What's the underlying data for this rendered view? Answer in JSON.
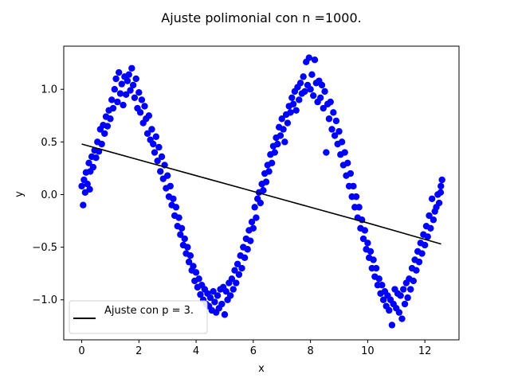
{
  "chart_data": {
    "type": "scatter",
    "title": "Ajuste polimonial con n =1000.",
    "xlabel": "x",
    "ylabel": "y",
    "xlim": [
      -0.628,
      13.194
    ],
    "ylim": [
      -1.38,
      1.41
    ],
    "xticks": [
      0,
      2,
      4,
      6,
      8,
      10,
      12
    ],
    "yticks": [
      -1.0,
      -0.5,
      0.0,
      0.5,
      1.0
    ],
    "xtick_labels": [
      "0",
      "2",
      "4",
      "6",
      "8",
      "10",
      "12"
    ],
    "ytick_labels": [
      "−1.0",
      "−0.5",
      "0.0",
      "0.5",
      "1.0"
    ],
    "grid": false,
    "legend_placement": "lower-left",
    "series": [
      {
        "type": "scatter",
        "color": "#0000ff",
        "points": [
          [
            0.0,
            0.08
          ],
          [
            0.05,
            -0.1
          ],
          [
            0.08,
            0.14
          ],
          [
            0.12,
            0.02
          ],
          [
            0.15,
            0.21
          ],
          [
            0.2,
            0.1
          ],
          [
            0.25,
            0.3
          ],
          [
            0.28,
            0.05
          ],
          [
            0.3,
            0.22
          ],
          [
            0.35,
            0.36
          ],
          [
            0.4,
            0.26
          ],
          [
            0.45,
            0.42
          ],
          [
            0.5,
            0.35
          ],
          [
            0.55,
            0.5
          ],
          [
            0.6,
            0.41
          ],
          [
            0.65,
            0.62
          ],
          [
            0.7,
            0.48
          ],
          [
            0.75,
            0.66
          ],
          [
            0.8,
            0.58
          ],
          [
            0.85,
            0.74
          ],
          [
            0.9,
            0.65
          ],
          [
            0.95,
            0.8
          ],
          [
            1.0,
            0.72
          ],
          [
            1.05,
            0.9
          ],
          [
            1.1,
            0.82
          ],
          [
            1.15,
            1.0
          ],
          [
            1.2,
            1.1
          ],
          [
            1.25,
            0.88
          ],
          [
            1.3,
            1.16
          ],
          [
            1.35,
            0.96
          ],
          [
            1.4,
            1.05
          ],
          [
            1.45,
            0.85
          ],
          [
            1.5,
            1.12
          ],
          [
            1.55,
            0.95
          ],
          [
            1.6,
            1.08
          ],
          [
            1.65,
            1.14
          ],
          [
            1.7,
            0.99
          ],
          [
            1.75,
            1.2
          ],
          [
            1.8,
            1.04
          ],
          [
            1.85,
            0.92
          ],
          [
            1.9,
            1.1
          ],
          [
            1.95,
            0.82
          ],
          [
            2.0,
            0.97
          ],
          [
            2.05,
            0.78
          ],
          [
            2.1,
            0.9
          ],
          [
            2.15,
            0.68
          ],
          [
            2.2,
            0.84
          ],
          [
            2.25,
            0.72
          ],
          [
            2.3,
            0.58
          ],
          [
            2.35,
            0.75
          ],
          [
            2.4,
            0.52
          ],
          [
            2.45,
            0.62
          ],
          [
            2.5,
            0.48
          ],
          [
            2.55,
            0.4
          ],
          [
            2.6,
            0.55
          ],
          [
            2.65,
            0.32
          ],
          [
            2.7,
            0.45
          ],
          [
            2.75,
            0.22
          ],
          [
            2.8,
            0.36
          ],
          [
            2.85,
            0.15
          ],
          [
            2.9,
            0.28
          ],
          [
            2.95,
            0.06
          ],
          [
            3.0,
            0.18
          ],
          [
            3.05,
            -0.02
          ],
          [
            3.1,
            0.08
          ],
          [
            3.15,
            -0.1
          ],
          [
            3.2,
            -0.04
          ],
          [
            3.25,
            -0.2
          ],
          [
            3.3,
            -0.12
          ],
          [
            3.35,
            -0.3
          ],
          [
            3.4,
            -0.22
          ],
          [
            3.45,
            -0.38
          ],
          [
            3.5,
            -0.32
          ],
          [
            3.55,
            -0.48
          ],
          [
            3.6,
            -0.42
          ],
          [
            3.65,
            -0.56
          ],
          [
            3.7,
            -0.5
          ],
          [
            3.75,
            -0.64
          ],
          [
            3.8,
            -0.58
          ],
          [
            3.85,
            -0.72
          ],
          [
            3.9,
            -0.68
          ],
          [
            3.95,
            -0.82
          ],
          [
            4.0,
            -0.74
          ],
          [
            4.05,
            -0.88
          ],
          [
            4.1,
            -0.8
          ],
          [
            4.15,
            -0.95
          ],
          [
            4.2,
            -0.86
          ],
          [
            4.25,
            -1.0
          ],
          [
            4.3,
            -0.9
          ],
          [
            4.35,
            -1.04
          ],
          [
            4.4,
            -0.94
          ],
          [
            4.45,
            -1.06
          ],
          [
            4.5,
            -0.98
          ],
          [
            4.55,
            -1.1
          ],
          [
            4.6,
            -0.92
          ],
          [
            4.65,
            -1.02
          ],
          [
            4.7,
            -1.12
          ],
          [
            4.75,
            -0.96
          ],
          [
            4.8,
            -1.08
          ],
          [
            4.85,
            -0.9
          ],
          [
            4.9,
            -1.04
          ],
          [
            4.95,
            -0.88
          ],
          [
            5.0,
            -1.14
          ],
          [
            5.05,
            -0.92
          ],
          [
            5.1,
            -1.0
          ],
          [
            5.15,
            -0.84
          ],
          [
            5.2,
            -0.96
          ],
          [
            5.25,
            -0.8
          ],
          [
            5.3,
            -0.9
          ],
          [
            5.35,
            -0.72
          ],
          [
            5.4,
            -0.84
          ],
          [
            5.45,
            -0.66
          ],
          [
            5.5,
            -0.76
          ],
          [
            5.55,
            -0.58
          ],
          [
            5.6,
            -0.7
          ],
          [
            5.65,
            -0.5
          ],
          [
            5.7,
            -0.6
          ],
          [
            5.75,
            -0.42
          ],
          [
            5.8,
            -0.52
          ],
          [
            5.85,
            -0.34
          ],
          [
            5.9,
            -0.44
          ],
          [
            5.95,
            -0.26
          ],
          [
            6.0,
            -0.32
          ],
          [
            6.05,
            -0.12
          ],
          [
            6.1,
            -0.22
          ],
          [
            6.15,
            -0.04
          ],
          [
            6.2,
            0.02
          ],
          [
            6.25,
            -0.08
          ],
          [
            6.3,
            0.1
          ],
          [
            6.35,
            0.04
          ],
          [
            6.4,
            0.2
          ],
          [
            6.45,
            0.12
          ],
          [
            6.5,
            0.28
          ],
          [
            6.55,
            0.22
          ],
          [
            6.6,
            0.38
          ],
          [
            6.65,
            0.3
          ],
          [
            6.7,
            0.46
          ],
          [
            6.75,
            0.4
          ],
          [
            6.8,
            0.54
          ],
          [
            6.85,
            0.48
          ],
          [
            6.9,
            0.64
          ],
          [
            6.95,
            0.56
          ],
          [
            7.0,
            0.72
          ],
          [
            7.05,
            0.62
          ],
          [
            7.1,
            0.5
          ],
          [
            7.15,
            0.76
          ],
          [
            7.2,
            0.68
          ],
          [
            7.25,
            0.84
          ],
          [
            7.3,
            0.78
          ],
          [
            7.35,
            0.92
          ],
          [
            7.4,
            0.86
          ],
          [
            7.45,
            0.98
          ],
          [
            7.5,
            0.8
          ],
          [
            7.55,
            1.02
          ],
          [
            7.6,
            0.9
          ],
          [
            7.65,
            1.06
          ],
          [
            7.7,
            0.96
          ],
          [
            7.75,
            1.12
          ],
          [
            7.8,
            0.98
          ],
          [
            7.85,
            1.26
          ],
          [
            7.9,
            1.04
          ],
          [
            7.95,
            1.3
          ],
          [
            8.0,
            1.0
          ],
          [
            8.05,
            1.14
          ],
          [
            8.1,
            0.94
          ],
          [
            8.15,
            1.28
          ],
          [
            8.2,
            1.06
          ],
          [
            8.25,
            0.88
          ],
          [
            8.3,
            1.08
          ],
          [
            8.35,
            0.92
          ],
          [
            8.4,
            1.04
          ],
          [
            8.45,
            0.82
          ],
          [
            8.5,
            0.98
          ],
          [
            8.55,
            0.4
          ],
          [
            8.6,
            0.86
          ],
          [
            8.65,
            0.72
          ],
          [
            8.7,
            0.88
          ],
          [
            8.75,
            0.62
          ],
          [
            8.8,
            0.78
          ],
          [
            8.85,
            0.56
          ],
          [
            8.9,
            0.7
          ],
          [
            8.95,
            0.48
          ],
          [
            9.0,
            0.6
          ],
          [
            9.05,
            0.38
          ],
          [
            9.1,
            0.5
          ],
          [
            9.15,
            0.28
          ],
          [
            9.2,
            0.4
          ],
          [
            9.25,
            0.18
          ],
          [
            9.3,
            0.3
          ],
          [
            9.35,
            0.08
          ],
          [
            9.4,
            0.2
          ],
          [
            9.45,
            -0.02
          ],
          [
            9.5,
            0.08
          ],
          [
            9.55,
            -0.12
          ],
          [
            9.6,
            -0.02
          ],
          [
            9.65,
            -0.22
          ],
          [
            9.7,
            -0.12
          ],
          [
            9.75,
            -0.32
          ],
          [
            9.8,
            -0.24
          ],
          [
            9.85,
            -0.42
          ],
          [
            9.9,
            -0.34
          ],
          [
            9.95,
            -0.52
          ],
          [
            10.0,
            -0.46
          ],
          [
            10.05,
            -0.6
          ],
          [
            10.1,
            -0.54
          ],
          [
            10.15,
            -0.7
          ],
          [
            10.2,
            -0.62
          ],
          [
            10.25,
            -0.78
          ],
          [
            10.3,
            -0.7
          ],
          [
            10.35,
            -0.86
          ],
          [
            10.4,
            -0.8
          ],
          [
            10.45,
            -0.94
          ],
          [
            10.5,
            -0.86
          ],
          [
            10.55,
            -1.0
          ],
          [
            10.6,
            -0.92
          ],
          [
            10.65,
            -1.06
          ],
          [
            10.7,
            -0.96
          ],
          [
            10.75,
            -1.1
          ],
          [
            10.8,
            -1.0
          ],
          [
            10.85,
            -1.24
          ],
          [
            10.9,
            -1.04
          ],
          [
            10.95,
            -0.9
          ],
          [
            11.0,
            -1.08
          ],
          [
            11.05,
            -0.94
          ],
          [
            11.1,
            -1.12
          ],
          [
            11.15,
            -0.96
          ],
          [
            11.2,
            -1.18
          ],
          [
            11.25,
            -0.9
          ],
          [
            11.3,
            -1.04
          ],
          [
            11.35,
            -0.84
          ],
          [
            11.4,
            -0.98
          ],
          [
            11.45,
            -0.8
          ],
          [
            11.5,
            -0.9
          ],
          [
            11.55,
            -0.7
          ],
          [
            11.6,
            -0.82
          ],
          [
            11.65,
            -0.62
          ],
          [
            11.7,
            -0.72
          ],
          [
            11.75,
            -0.54
          ],
          [
            11.8,
            -0.64
          ],
          [
            11.85,
            -0.46
          ],
          [
            11.9,
            -0.56
          ],
          [
            11.95,
            -0.38
          ],
          [
            12.0,
            -0.48
          ],
          [
            12.05,
            -0.3
          ],
          [
            12.1,
            -0.4
          ],
          [
            12.15,
            -0.2
          ],
          [
            12.2,
            -0.32
          ],
          [
            12.25,
            -0.04
          ],
          [
            12.3,
            -0.24
          ],
          [
            12.35,
            -0.16
          ],
          [
            12.4,
            -0.12
          ],
          [
            12.45,
            0.0
          ],
          [
            12.5,
            -0.08
          ],
          [
            12.55,
            0.02
          ],
          [
            12.6,
            0.14
          ],
          [
            12.56,
            0.08
          ]
        ]
      },
      {
        "type": "line",
        "name": "Ajuste con p = 3.",
        "color": "#000000",
        "x": [
          0.0,
          2.0,
          4.0,
          6.0,
          8.0,
          10.0,
          12.57
        ],
        "y": [
          0.48,
          0.33,
          0.18,
          0.03,
          -0.12,
          -0.27,
          -0.47
        ]
      }
    ]
  }
}
